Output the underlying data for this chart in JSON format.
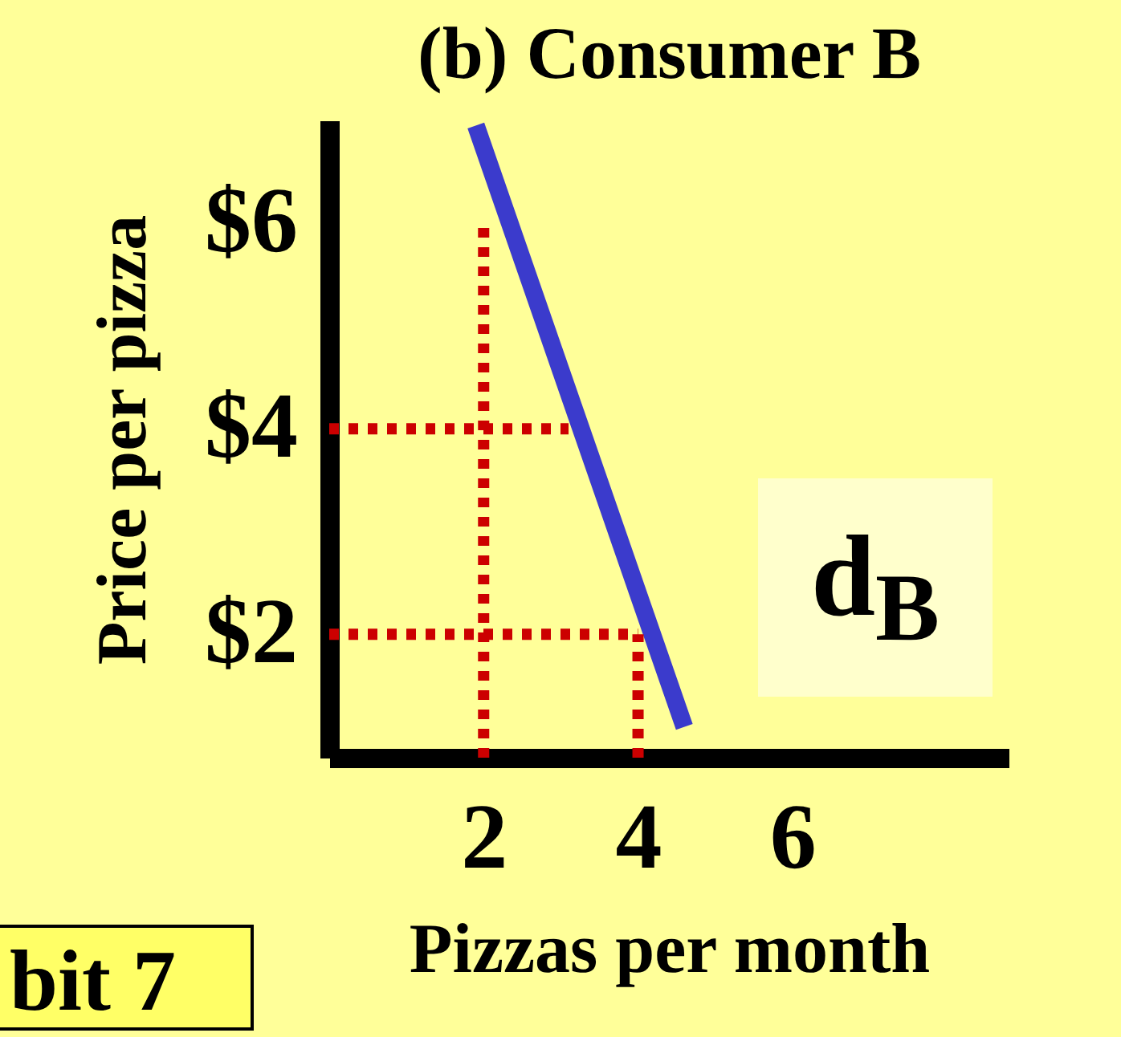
{
  "chart_data": {
    "type": "line",
    "title": "(b) Consumer B",
    "xlabel": "Pizzas per month",
    "ylabel": "Price per pizza",
    "xlim": [
      0,
      8.8
    ],
    "ylim": [
      0.8,
      7
    ],
    "xticks": [
      2,
      4,
      6
    ],
    "yticks": [
      {
        "value": 2,
        "label": "$2"
      },
      {
        "value": 4,
        "label": "$4"
      },
      {
        "value": 6,
        "label": "$6"
      }
    ],
    "grid": false,
    "marker": "none",
    "series": [
      {
        "color": "#3b3bcc",
        "x": [
          1.9,
          4.6
        ],
        "values": [
          6.95,
          1.1
        ],
        "line_style": "solid"
      },
      {
        "color": "#cc0000",
        "x": [
          2,
          2
        ],
        "values": [
          0.8,
          6
        ],
        "line_style": "dotted"
      },
      {
        "color": "#cc0000",
        "x": [
          0,
          3.1
        ],
        "values": [
          4,
          4
        ],
        "line_style": "dotted"
      },
      {
        "color": "#cc0000",
        "x": [
          0,
          4
        ],
        "values": [
          2,
          2
        ],
        "line_style": "dotted"
      },
      {
        "color": "#cc0000",
        "x": [
          4,
          4
        ],
        "values": [
          0.8,
          2
        ],
        "line_style": "dotted"
      }
    ],
    "annotations": [
      "d$_{B}$",
      "bit 7"
    ]
  }
}
